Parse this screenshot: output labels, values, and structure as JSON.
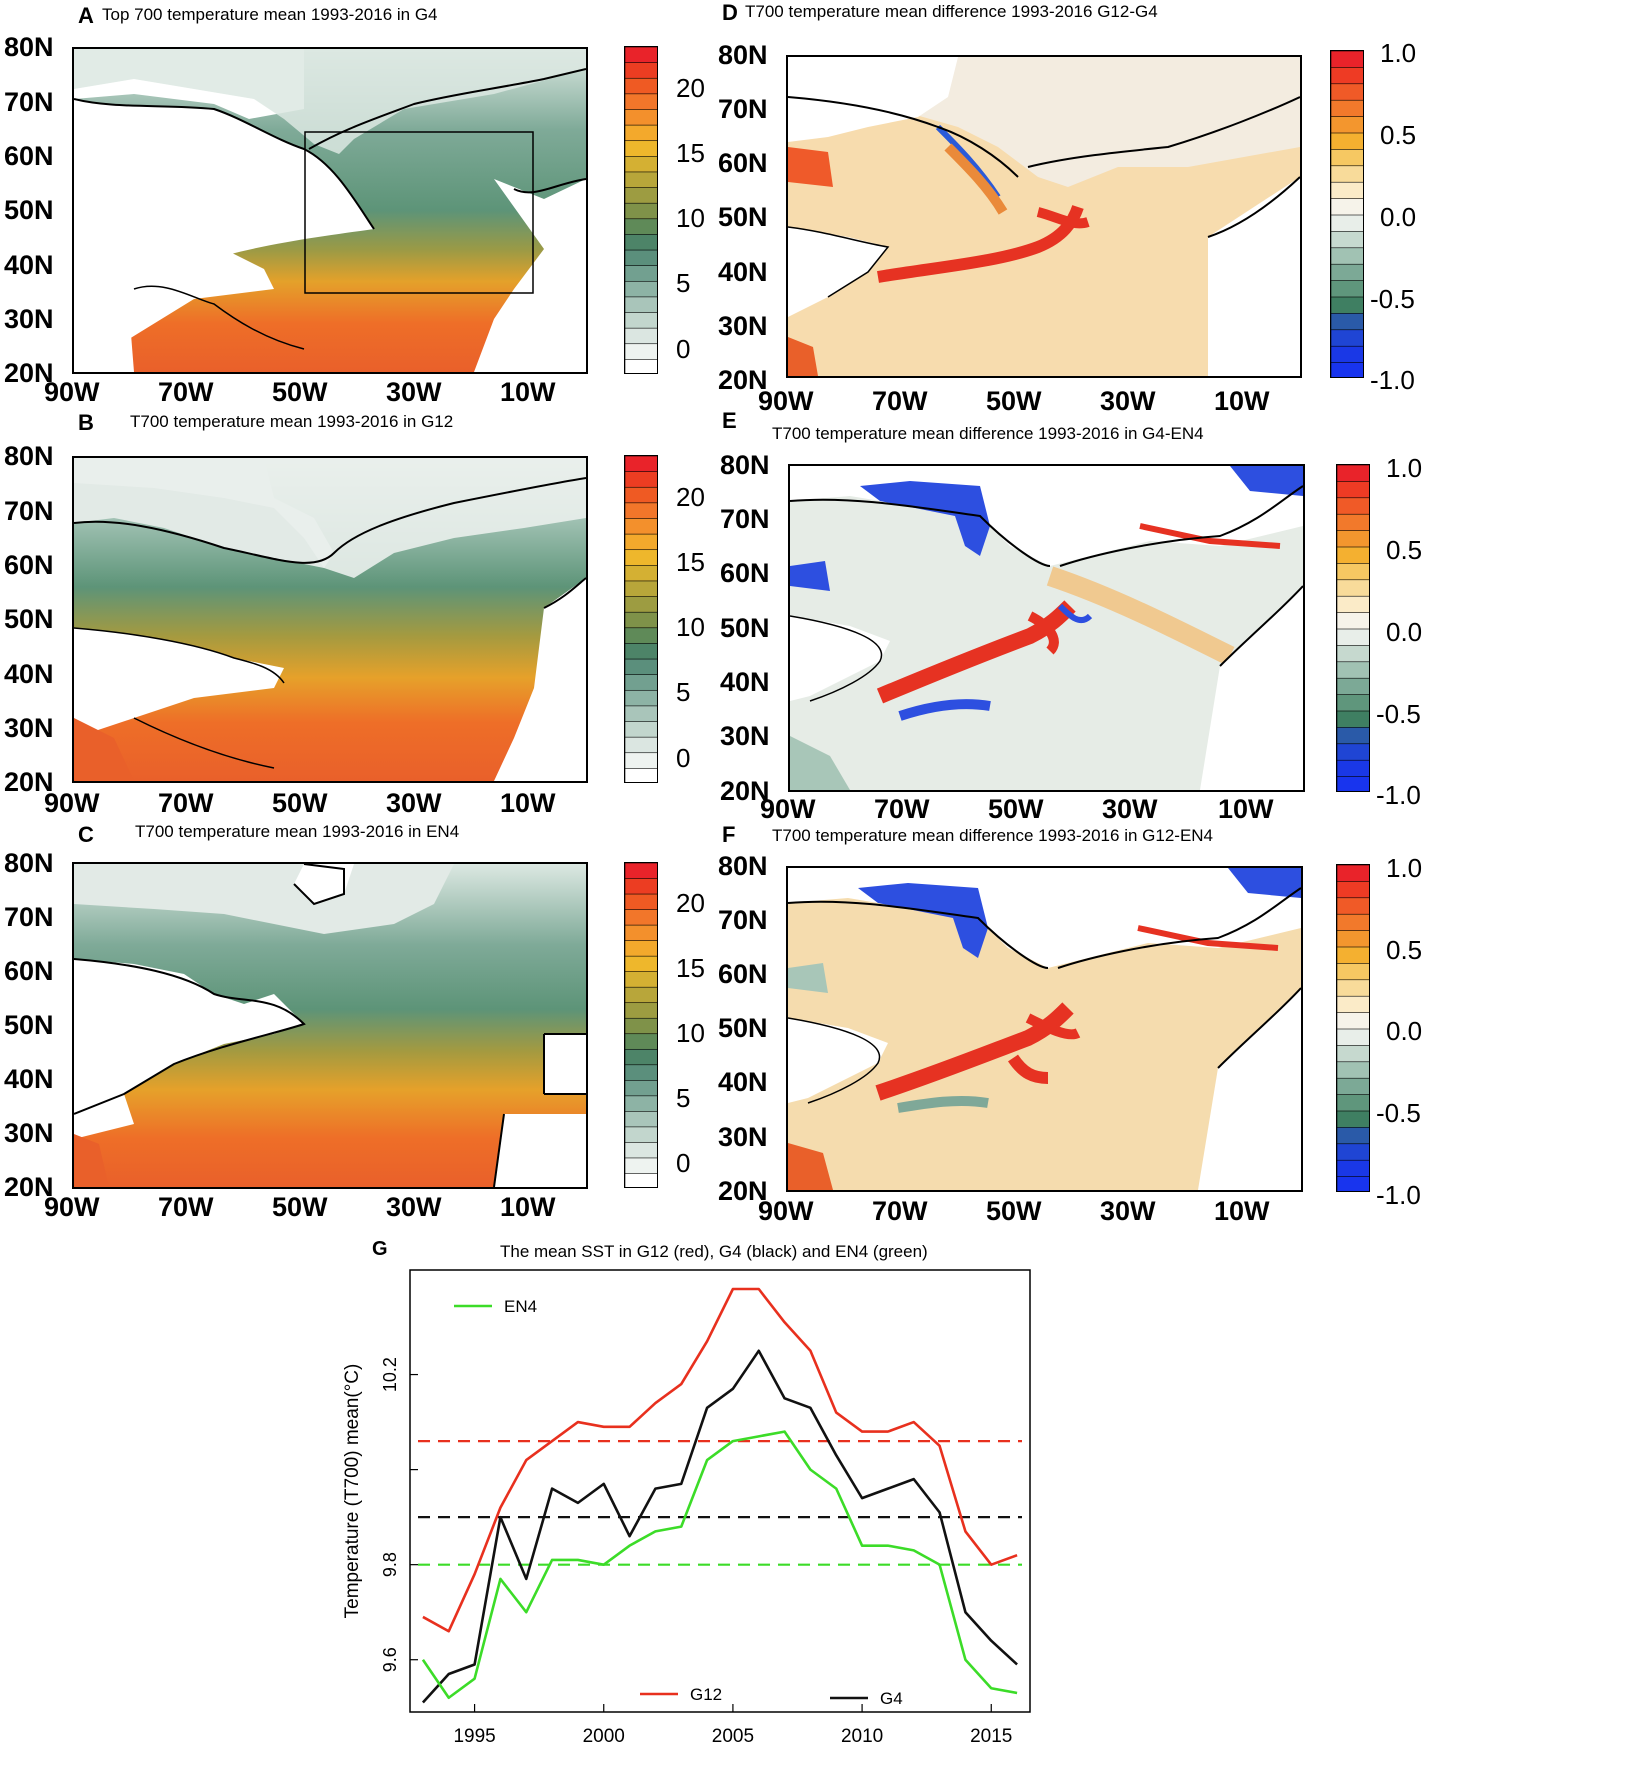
{
  "chart_data": [
    {
      "type": "heatmap",
      "label": "A",
      "title": "Top 700 temperature mean 1993-2016 in G4",
      "lat_ticks": [
        "80N",
        "70N",
        "60N",
        "50N",
        "40N",
        "30N",
        "20N"
      ],
      "lon_ticks": [
        "90W",
        "70W",
        "50W",
        "30W",
        "10W"
      ],
      "colorbar_ticks": [
        "20",
        "15",
        "10",
        "5",
        "0"
      ],
      "colorbar_range": [
        -2,
        23
      ],
      "palette": "sequential",
      "box_region": {
        "lon": [
          -50,
          -10
        ],
        "lat": [
          35,
          65
        ]
      }
    },
    {
      "type": "heatmap",
      "label": "B",
      "title": "T700 temperature mean 1993-2016 in G12",
      "lat_ticks": [
        "80N",
        "70N",
        "60N",
        "50N",
        "40N",
        "30N",
        "20N"
      ],
      "lon_ticks": [
        "90W",
        "70W",
        "50W",
        "30W",
        "10W"
      ],
      "colorbar_ticks": [
        "20",
        "15",
        "10",
        "5",
        "0"
      ],
      "colorbar_range": [
        -2,
        23
      ],
      "palette": "sequential"
    },
    {
      "type": "heatmap",
      "label": "C",
      "title": "T700 temperature mean 1993-2016 in EN4",
      "lat_ticks": [
        "80N",
        "70N",
        "60N",
        "50N",
        "40N",
        "30N",
        "20N"
      ],
      "lon_ticks": [
        "90W",
        "70W",
        "50W",
        "30W",
        "10W"
      ],
      "colorbar_ticks": [
        "20",
        "15",
        "10",
        "5",
        "0"
      ],
      "colorbar_range": [
        -2,
        23
      ],
      "palette": "sequential"
    },
    {
      "type": "heatmap",
      "label": "D",
      "title": "T700 temperature mean difference 1993-2016  G12-G4",
      "lat_ticks": [
        "80N",
        "70N",
        "60N",
        "50N",
        "40N",
        "30N",
        "20N"
      ],
      "lon_ticks": [
        "90W",
        "70W",
        "50W",
        "30W",
        "10W"
      ],
      "colorbar_ticks": [
        "1.0",
        "0.5",
        "0.0",
        "-0.5",
        "-1.0"
      ],
      "colorbar_range": [
        -1,
        1
      ],
      "palette": "diverging"
    },
    {
      "type": "heatmap",
      "label": "E",
      "title": "T700 temperature mean difference 1993-2016 in  G4-EN4",
      "lat_ticks": [
        "80N",
        "70N",
        "60N",
        "50N",
        "40N",
        "30N",
        "20N"
      ],
      "lon_ticks": [
        "90W",
        "70W",
        "50W",
        "30W",
        "10W"
      ],
      "colorbar_ticks": [
        "1.0",
        "0.5",
        "0.0",
        "-0.5",
        "-1.0"
      ],
      "colorbar_range": [
        -1,
        1
      ],
      "palette": "diverging"
    },
    {
      "type": "heatmap",
      "label": "F",
      "title": "T700 temperature mean difference 1993-2016 in G12-EN4",
      "lat_ticks": [
        "80N",
        "70N",
        "60N",
        "50N",
        "40N",
        "30N",
        "20N"
      ],
      "lon_ticks": [
        "90W",
        "70W",
        "50W",
        "30W",
        "10W"
      ],
      "colorbar_ticks": [
        "1.0",
        "0.5",
        "0.0",
        "-0.5",
        "-1.0"
      ],
      "colorbar_range": [
        -1,
        1
      ],
      "palette": "diverging"
    },
    {
      "type": "line",
      "label": "G",
      "title": "The mean SST in G12 (red), G4 (black) and EN4 (green)",
      "ylabel": "Temperature (T700) mean(°C)",
      "xlabel": "",
      "xlim": [
        1992.5,
        2016.5
      ],
      "ylim": [
        9.49,
        10.42
      ],
      "xticks": [
        1995,
        2000,
        2005,
        2010,
        2015
      ],
      "xtick_labels": [
        "1995",
        "2000",
        "2005",
        "2010",
        "2015"
      ],
      "yticks": [
        9.6,
        9.8,
        10.0,
        10.2
      ],
      "ytick_labels": [
        "9.6",
        "9.8",
        "",
        "10.2"
      ],
      "x": [
        1993,
        1994,
        1995,
        1996,
        1997,
        1998,
        1999,
        2000,
        2001,
        2002,
        2003,
        2004,
        2005,
        2006,
        2007,
        2008,
        2009,
        2010,
        2011,
        2012,
        2013,
        2014,
        2015,
        2016
      ],
      "series": [
        {
          "name": "G12",
          "color": "#e8301e",
          "values": [
            9.69,
            9.66,
            9.78,
            9.92,
            10.02,
            10.06,
            10.1,
            10.09,
            10.09,
            10.14,
            10.18,
            10.27,
            10.38,
            10.38,
            10.31,
            10.25,
            10.12,
            10.08,
            10.08,
            10.1,
            10.05,
            9.87,
            9.8,
            9.82
          ],
          "mean": 10.06
        },
        {
          "name": "G4",
          "color": "#111111",
          "values": [
            9.51,
            9.57,
            9.59,
            9.9,
            9.77,
            9.96,
            9.93,
            9.97,
            9.86,
            9.96,
            9.97,
            10.13,
            10.17,
            10.25,
            10.15,
            10.13,
            10.03,
            9.94,
            9.96,
            9.98,
            9.91,
            9.7,
            9.64,
            9.59
          ],
          "mean": 9.9
        },
        {
          "name": "EN4",
          "color": "#3cdc28",
          "values": [
            9.6,
            9.52,
            9.56,
            9.77,
            9.7,
            9.81,
            9.81,
            9.8,
            9.84,
            9.87,
            9.88,
            10.02,
            10.06,
            10.07,
            10.08,
            10.0,
            9.96,
            9.84,
            9.84,
            9.83,
            9.8,
            9.6,
            9.54,
            9.53
          ],
          "mean": 9.8
        }
      ],
      "legend": [
        "EN4",
        "G12",
        "G4"
      ]
    }
  ]
}
